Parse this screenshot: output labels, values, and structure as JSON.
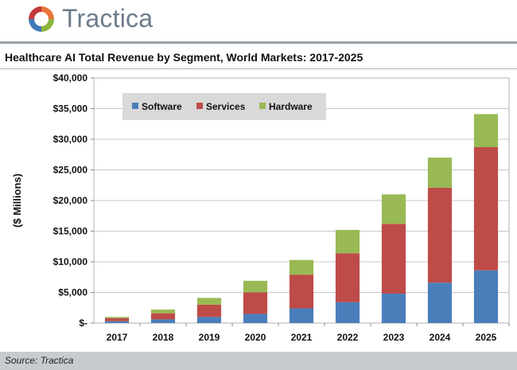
{
  "brand": {
    "name": "Tractica"
  },
  "source": "Source: Tractica",
  "chart_data": {
    "type": "bar",
    "stacked": true,
    "title": "Healthcare AI Total Revenue by Segment, World Markets: 2017-2025",
    "ylabel": "($ Millions)",
    "xlabel": "",
    "categories": [
      "2017",
      "2018",
      "2019",
      "2020",
      "2021",
      "2022",
      "2023",
      "2024",
      "2025"
    ],
    "ylim": [
      0,
      40000
    ],
    "yticks": [
      0,
      5000,
      10000,
      15000,
      20000,
      25000,
      30000,
      35000,
      40000
    ],
    "ytick_labels": [
      "$-",
      "$5,000",
      "$10,000",
      "$15,000",
      "$20,000",
      "$25,000",
      "$30,000",
      "$35,000",
      "$40,000"
    ],
    "legend_position": "top-left",
    "gridlines": true,
    "series": [
      {
        "name": "Software",
        "color": "#4a7ebb",
        "values": [
          300,
          600,
          1000,
          1500,
          2400,
          3400,
          4800,
          6600,
          8600
        ]
      },
      {
        "name": "Services",
        "color": "#be4b48",
        "values": [
          500,
          1000,
          2000,
          3500,
          5500,
          8000,
          11400,
          15500,
          20100
        ]
      },
      {
        "name": "Hardware",
        "color": "#98b954",
        "values": [
          200,
          600,
          1100,
          1900,
          2400,
          3800,
          4800,
          4900,
          5400
        ]
      }
    ]
  }
}
